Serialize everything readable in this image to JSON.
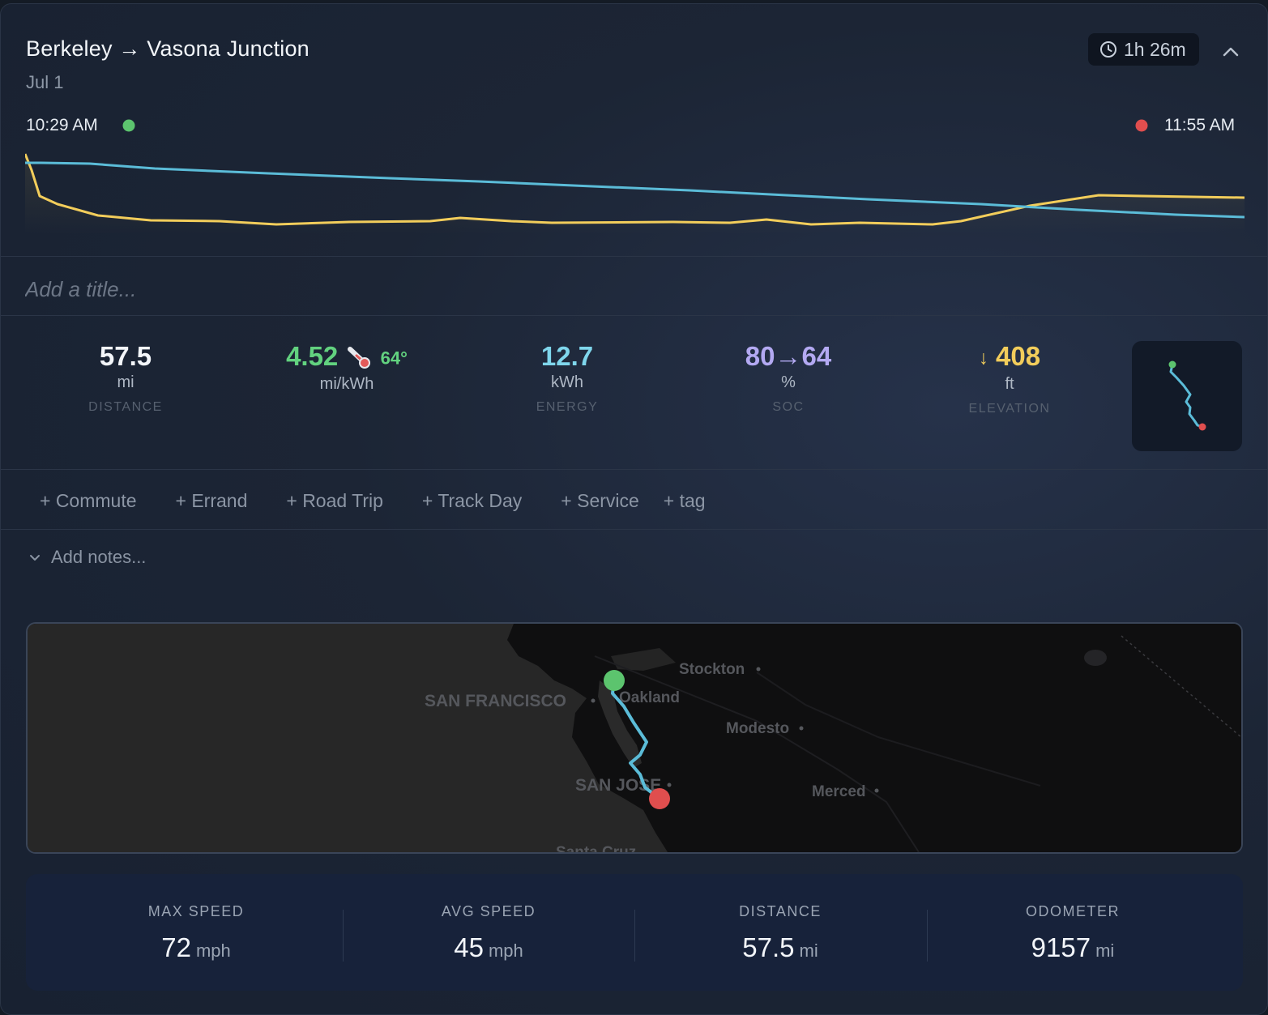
{
  "header": {
    "from": "Berkeley",
    "arrow": "→",
    "to": "Vasona Junction",
    "date": "Jul 1",
    "duration": "1h 26m"
  },
  "timeline": {
    "start_time": "10:29 AM",
    "end_time": "11:55 AM"
  },
  "title_placeholder": "Add a title...",
  "stats": {
    "distance": {
      "value": "57.5",
      "unit": "mi",
      "label": "DISTANCE"
    },
    "efficiency": {
      "value": "4.52",
      "unit": "mi/kWh",
      "temp": "64°"
    },
    "energy": {
      "value": "12.7",
      "unit": "kWh",
      "label": "ENERGY"
    },
    "soc": {
      "value": "80→64",
      "unit": "%",
      "label": "SOC"
    },
    "elevation": {
      "arrow": "↓",
      "value": "408",
      "unit": "ft",
      "label": "ELEVATION"
    }
  },
  "tags": [
    "+ Commute",
    "+ Errand",
    "+ Road Trip",
    "+ Track Day",
    "+ Service",
    "+ tag"
  ],
  "notes_placeholder": "Add notes...",
  "map_labels": {
    "stockton": "Stockton",
    "san_francisco": "SAN FRANCISCO",
    "oakland": "Oakland",
    "modesto": "Modesto",
    "san_jose": "SAN JOSE",
    "merced": "Merced",
    "santa_cruz": "Santa Cruz"
  },
  "summary": [
    {
      "label": "MAX SPEED",
      "value": "72",
      "unit": "mph"
    },
    {
      "label": "AVG SPEED",
      "value": "45",
      "unit": "mph"
    },
    {
      "label": "DISTANCE",
      "value": "57.5",
      "unit": "mi"
    },
    {
      "label": "ODOMETER",
      "value": "9157",
      "unit": "mi"
    }
  ],
  "colors": {
    "efficiency": "#62d27f",
    "energy": "#7fd6ec",
    "soc": "#b3a9f2",
    "elevation": "#f2cd5b",
    "route": "#5bbcd8",
    "start": "#5cc46e",
    "end": "#e04e4e"
  }
}
